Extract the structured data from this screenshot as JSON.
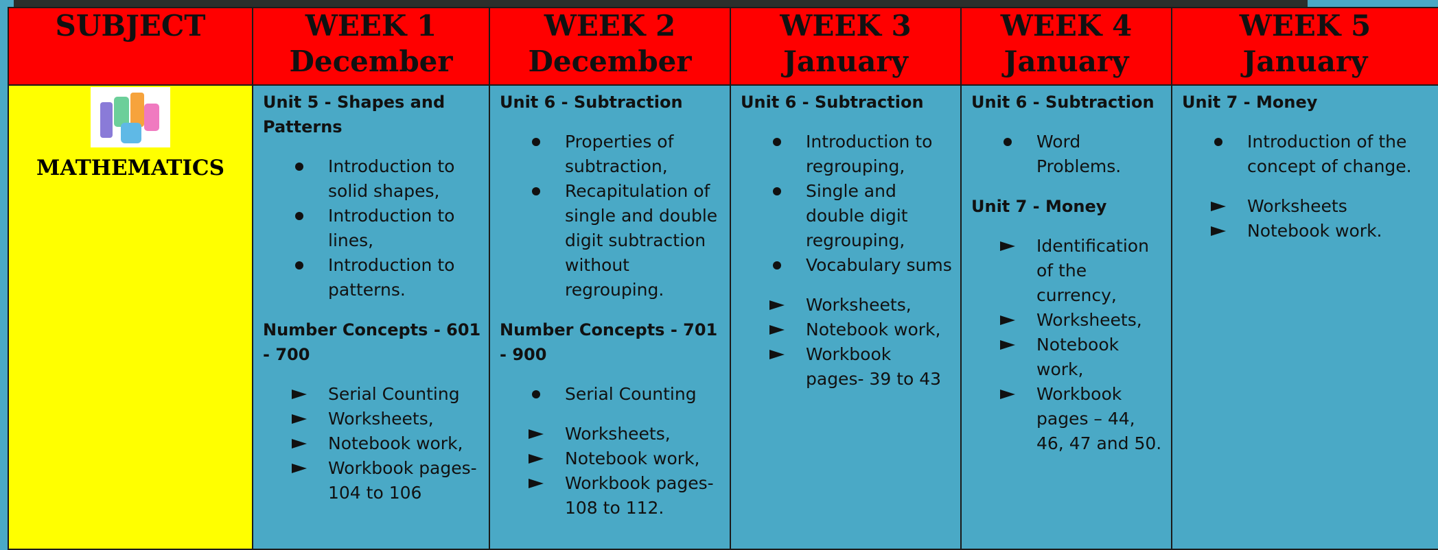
{
  "header": {
    "subject": "SUBJECT",
    "weeks": [
      {
        "week": "WEEK 1",
        "month": "December"
      },
      {
        "week": "WEEK 2",
        "month": "December"
      },
      {
        "week": "WEEK 3",
        "month": "January"
      },
      {
        "week": "WEEK 4",
        "month": "January"
      },
      {
        "week": "WEEK 5",
        "month": "January"
      }
    ]
  },
  "rows": [
    {
      "subject": "MATHEMATICS",
      "weeks": [
        {
          "blocks": [
            {
              "heading": "Unit 5  - Shapes and Patterns"
            },
            {
              "marker": "dot",
              "items": [
                "Introduction to solid shapes,",
                "Introduction to lines,",
                "Introduction to patterns."
              ]
            },
            {
              "heading": "Number Concepts - 601 - 700"
            },
            {
              "marker": "arrow",
              "items": [
                "Serial Counting",
                "Worksheets,",
                "Notebook work,",
                "Workbook pages- 104 to 106"
              ]
            }
          ]
        },
        {
          "blocks": [
            {
              "heading": "Unit 6 - Subtraction"
            },
            {
              "marker": "dot",
              "items": [
                "Properties of subtraction,",
                "Recapitulation of single and double digit subtraction without regrouping."
              ]
            },
            {
              "heading": "Number Concepts - 701 - 900"
            },
            {
              "marker": "dot",
              "items": [
                "Serial Counting"
              ]
            },
            {
              "marker": "arrow",
              "items": [
                "Worksheets,",
                "Notebook work,",
                "Workbook pages- 108 to 112."
              ]
            }
          ]
        },
        {
          "blocks": [
            {
              "heading": "Unit 6 - Subtraction"
            },
            {
              "marker": "dot",
              "items": [
                "Introduction to regrouping,",
                "Single and double digit regrouping,",
                "Vocabulary sums"
              ]
            },
            {
              "marker": "arrow",
              "items": [
                "Worksheets,",
                "Notebook work,",
                "Workbook pages- 39 to 43"
              ]
            }
          ]
        },
        {
          "blocks": [
            {
              "heading": "Unit 6 - Subtraction"
            },
            {
              "marker": "dot",
              "items": [
                "Word Problems."
              ]
            },
            {
              "heading": "Unit 7 - Money"
            },
            {
              "marker": "arrow",
              "items": [
                "Identification of the currency,",
                "Worksheets,",
                "Notebook work,",
                "Workbook pages – 44, 46, 47 and 50."
              ]
            }
          ]
        },
        {
          "blocks": [
            {
              "heading": "Unit 7 - Money"
            },
            {
              "marker": "dot",
              "items": [
                "Introduction of the concept of change."
              ]
            },
            {
              "marker": "arrow",
              "items": [
                "Worksheets",
                "Notebook work."
              ]
            }
          ]
        }
      ]
    }
  ]
}
